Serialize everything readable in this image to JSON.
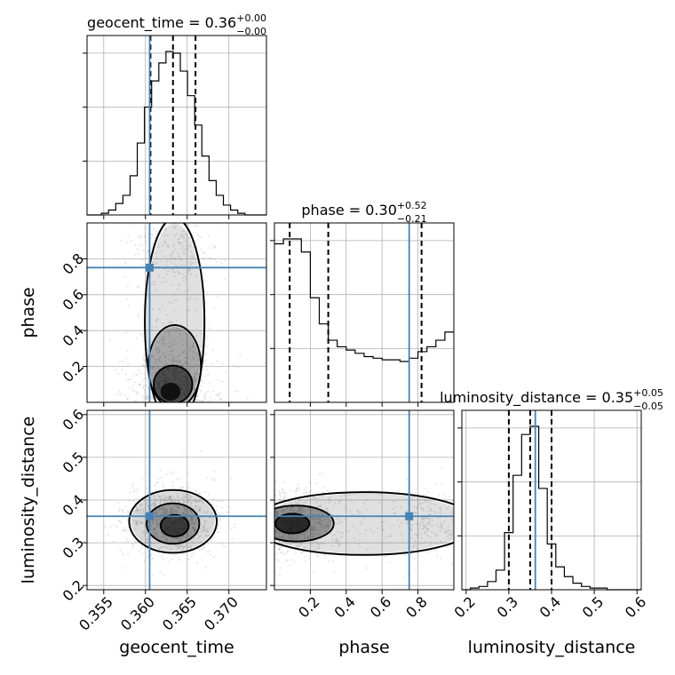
{
  "chart_data": {
    "type": "corner",
    "parameters": [
      {
        "name": "geocent_time",
        "axis_label": "geocent_time",
        "title_main": "geocent_time = 0.36",
        "title_plus": "+0.00",
        "title_minus": "−0.00",
        "median": 0.3633,
        "quantiles": [
          0.3606,
          0.3633,
          0.366
        ],
        "truth": 0.3605,
        "range": [
          0.353,
          0.3745
        ],
        "ticks": [
          0.355,
          0.36,
          0.365,
          0.37
        ],
        "tick_labels": [
          "0.355",
          "0.360",
          "0.365",
          "0.370"
        ],
        "hist": {
          "start": 0.353,
          "end": 0.3745,
          "counts": [
            0,
            0,
            1,
            3,
            7,
            12,
            24,
            44,
            66,
            82,
            93,
            100,
            99,
            88,
            73,
            55,
            36,
            21,
            12,
            6,
            3,
            1,
            0,
            0,
            0
          ]
        }
      },
      {
        "name": "phase",
        "axis_label": "phase",
        "title_main": "phase = 0.30",
        "title_plus": "+0.52",
        "title_minus": "−0.21",
        "median": 0.3,
        "quantiles": [
          0.085,
          0.3,
          0.82
        ],
        "truth": 0.751,
        "range": [
          0.0,
          1.0
        ],
        "ticks": [
          0.2,
          0.4,
          0.6,
          0.8
        ],
        "tick_labels": [
          "0.2",
          "0.4",
          "0.6",
          "0.8"
        ],
        "hist": {
          "start": 0.0,
          "end": 1.0,
          "counts": [
            97,
            100,
            100,
            92,
            64,
            48,
            38,
            34,
            32,
            30,
            28,
            27,
            26,
            26,
            25,
            27,
            31,
            34,
            38,
            43
          ]
        }
      },
      {
        "name": "luminosity_distance",
        "axis_label": "luminosity_distance",
        "title_main": "luminosity_distance = 0.35",
        "title_plus": "+0.05",
        "title_minus": "−0.05",
        "median": 0.35,
        "quantiles": [
          0.3,
          0.35,
          0.4
        ],
        "truth": 0.362,
        "range": [
          0.19,
          0.61
        ],
        "ticks": [
          0.2,
          0.3,
          0.4,
          0.5,
          0.6
        ],
        "tick_labels": [
          "0.2",
          "0.3",
          "0.4",
          "0.5",
          "0.6"
        ],
        "hist": {
          "start": 0.19,
          "end": 0.61,
          "counts": [
            0,
            1,
            2,
            5,
            12,
            35,
            70,
            95,
            100,
            62,
            28,
            14,
            8,
            4,
            2,
            1,
            1,
            0,
            0,
            0,
            0
          ]
        }
      }
    ],
    "truth_color": "#4682b4",
    "grid": true,
    "pair_densities": [
      {
        "x": "geocent_time",
        "y": "phase",
        "peaks": [
          [
            0.3635,
            0.12
          ]
        ],
        "note": "density concentrated at low phase, elongated along phase"
      },
      {
        "x": "geocent_time",
        "y": "luminosity_distance",
        "peaks": [
          [
            0.3633,
            0.35
          ]
        ]
      },
      {
        "x": "phase",
        "y": "luminosity_distance",
        "peaks": [
          [
            0.12,
            0.345
          ]
        ]
      }
    ]
  }
}
